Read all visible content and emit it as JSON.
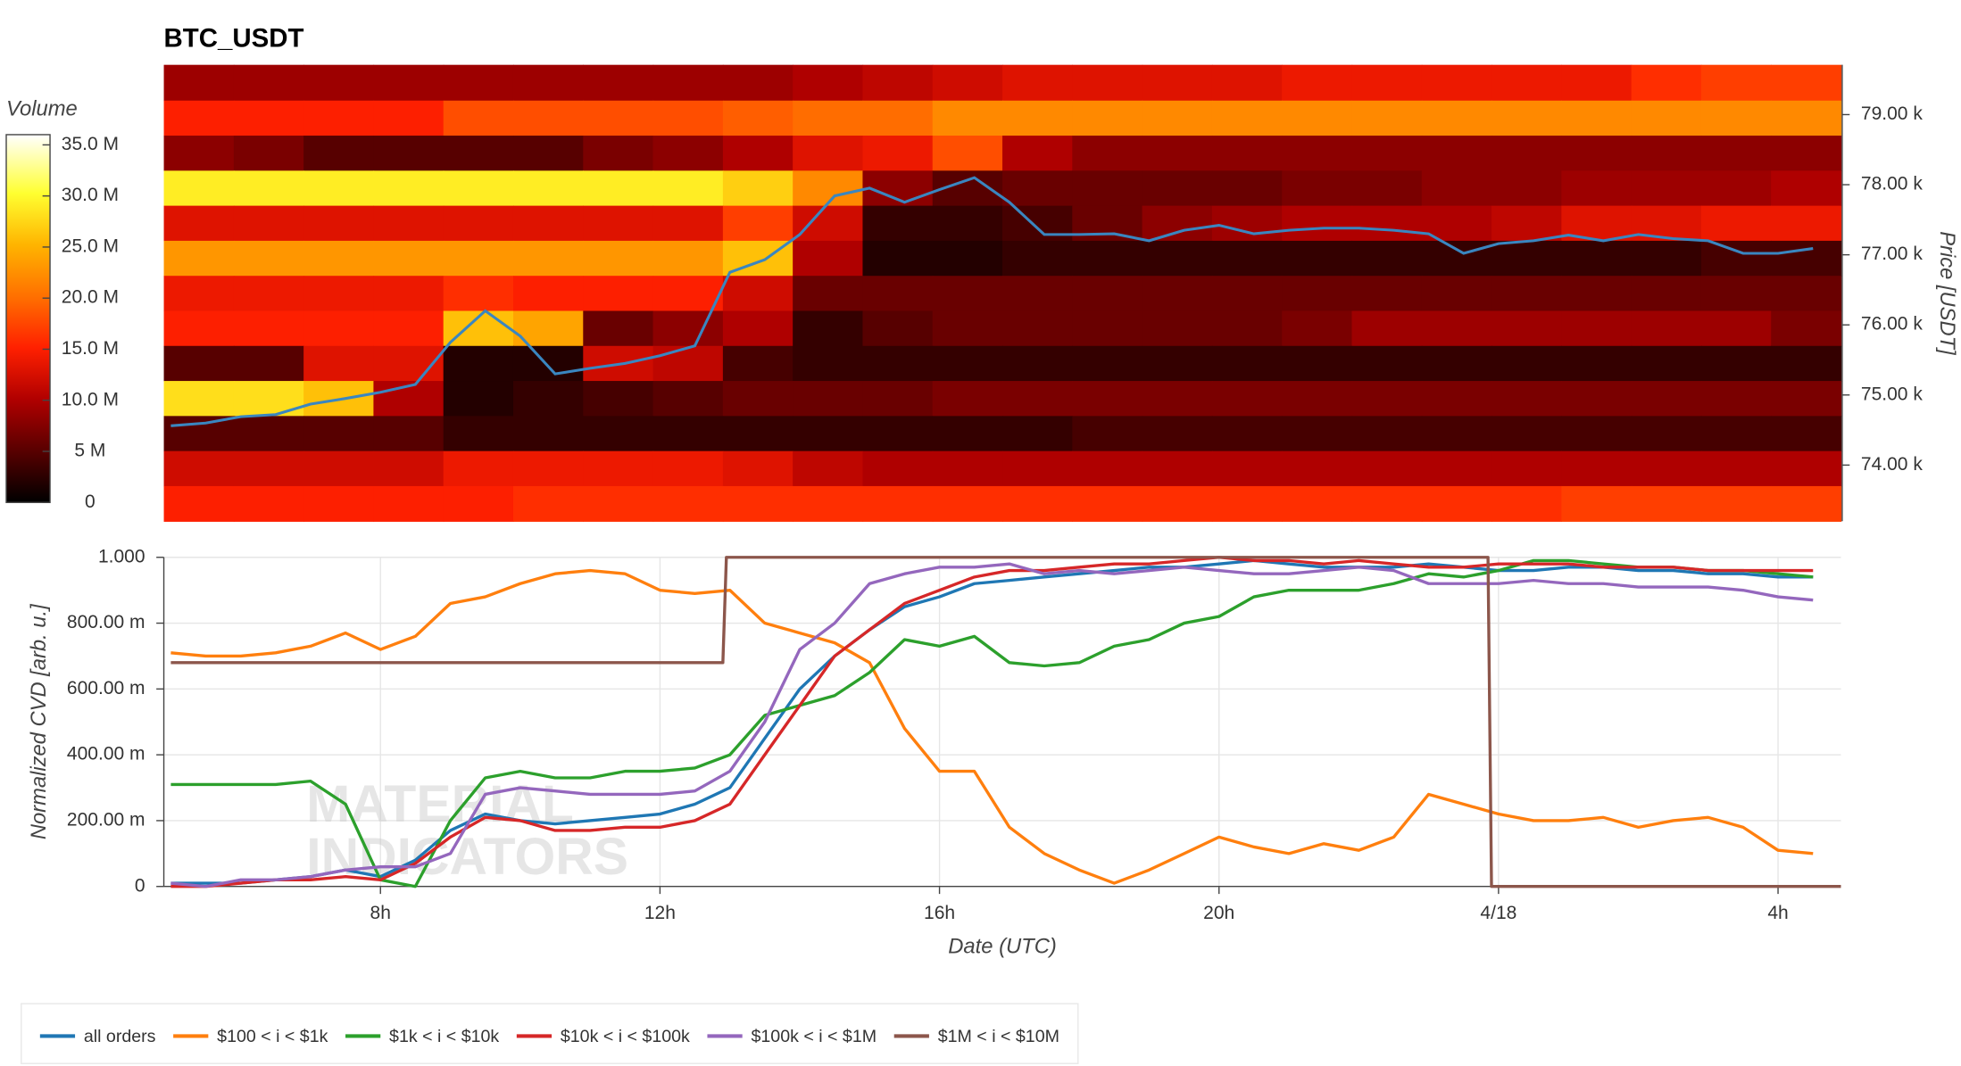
{
  "chart_data": [
    {
      "type": "heatmap",
      "title": "BTC_USDT",
      "xbins": [
        4.9,
        5.9,
        6.9,
        7.9,
        8.9,
        9.9,
        10.9,
        11.9,
        12.9,
        13.9,
        14.9,
        15.9,
        16.9,
        17.9,
        18.9,
        19.9,
        20.9,
        21.9,
        22.9,
        23.9,
        24.9,
        25.9,
        26.9,
        27.9,
        28.9
      ],
      "ybins": [
        79710,
        79200,
        78700,
        78200,
        77700,
        77200,
        76700,
        76200,
        75700,
        75200,
        74700,
        74200,
        73700,
        73200
      ],
      "z": [
        [
          9000000.0,
          9000000.0,
          9000000.0,
          9000000.0,
          9000000.0,
          9000000.0,
          9000000.0,
          9000000.0,
          9000000.0,
          10000000.0,
          11000000.0,
          12000000.0,
          13000000.0,
          13000000.0,
          13000000.0,
          13000000.0,
          14000000.0,
          14000000.0,
          14000000.0,
          14000000.0,
          14000000.0,
          16000000.0,
          17000000.0,
          17000000.0
        ],
        [
          15000000.0,
          15000000.0,
          15000000.0,
          15000000.0,
          18000000.0,
          18000000.0,
          18000000.0,
          18000000.0,
          19000000.0,
          20000000.0,
          20000000.0,
          22000000.0,
          22000000.0,
          22000000.0,
          22000000.0,
          22000000.0,
          22000000.0,
          22000000.0,
          22000000.0,
          22000000.0,
          22000000.0,
          22000000.0,
          22000000.0,
          22000000.0
        ],
        [
          8000000.0,
          7000000.0,
          5000000.0,
          5000000.0,
          5000000.0,
          5000000.0,
          7000000.0,
          8000000.0,
          10000000.0,
          13000000.0,
          14000000.0,
          18000000.0,
          10000000.0,
          8000000.0,
          8000000.0,
          8000000.0,
          8000000.0,
          8000000.0,
          8000000.0,
          8000000.0,
          8000000.0,
          8000000.0,
          8000000.0,
          8000000.0
        ],
        [
          29000000.0,
          29000000.0,
          29000000.0,
          29000000.0,
          29000000.0,
          29000000.0,
          29000000.0,
          29000000.0,
          27000000.0,
          22000000.0,
          8000000.0,
          5000000.0,
          6000000.0,
          6000000.0,
          6000000.0,
          6000000.0,
          7000000.0,
          7000000.0,
          8000000.0,
          8000000.0,
          9000000.0,
          9000000.0,
          9000000.0,
          10000000.0
        ],
        [
          13000000.0,
          13000000.0,
          13000000.0,
          13000000.0,
          13000000.0,
          13000000.0,
          13000000.0,
          13000000.0,
          17000000.0,
          12000000.0,
          3000000.0,
          3000000.0,
          4000000.0,
          6000000.0,
          8000000.0,
          9000000.0,
          10000000.0,
          10000000.0,
          10000000.0,
          11000000.0,
          13000000.0,
          13000000.0,
          14000000.0,
          14000000.0
        ],
        [
          23000000.0,
          23000000.0,
          23000000.0,
          23000000.0,
          23000000.0,
          23000000.0,
          23000000.0,
          23000000.0,
          26000000.0,
          10000000.0,
          2000000.0,
          2000000.0,
          3000000.0,
          3000000.0,
          3000000.0,
          3000000.0,
          3000000.0,
          3000000.0,
          3000000.0,
          3000000.0,
          3000000.0,
          3000000.0,
          4000000.0,
          4000000.0
        ],
        [
          14000000.0,
          14000000.0,
          14000000.0,
          14000000.0,
          16000000.0,
          15000000.0,
          15000000.0,
          15000000.0,
          12000000.0,
          6000000.0,
          6000000.0,
          6000000.0,
          6000000.0,
          6000000.0,
          6000000.0,
          6000000.0,
          6000000.0,
          6000000.0,
          6000000.0,
          6000000.0,
          6000000.0,
          6000000.0,
          6000000.0,
          6000000.0
        ],
        [
          15000000.0,
          15000000.0,
          15000000.0,
          15000000.0,
          26000000.0,
          24000000.0,
          6000000.0,
          8000000.0,
          10000000.0,
          3000000.0,
          5000000.0,
          6000000.0,
          6000000.0,
          6000000.0,
          6000000.0,
          6000000.0,
          7000000.0,
          9000000.0,
          9000000.0,
          9000000.0,
          9000000.0,
          9000000.0,
          9000000.0,
          7000000.0
        ],
        [
          5000000.0,
          5000000.0,
          13000000.0,
          13000000.0,
          2000000.0,
          2000000.0,
          12000000.0,
          11000000.0,
          4000000.0,
          3000000.0,
          3000000.0,
          3000000.0,
          3000000.0,
          3000000.0,
          3000000.0,
          3000000.0,
          3000000.0,
          3000000.0,
          3000000.0,
          3000000.0,
          3000000.0,
          3000000.0,
          3000000.0,
          3000000.0
        ],
        [
          28000000.0,
          28000000.0,
          26000000.0,
          10000000.0,
          2000000.0,
          3000000.0,
          4000000.0,
          5000000.0,
          6000000.0,
          6000000.0,
          6000000.0,
          7000000.0,
          7000000.0,
          7000000.0,
          7000000.0,
          7000000.0,
          7000000.0,
          7000000.0,
          7000000.0,
          7000000.0,
          7000000.0,
          7000000.0,
          7000000.0,
          7000000.0
        ],
        [
          5000000.0,
          5000000.0,
          5000000.0,
          5000000.0,
          3000000.0,
          3000000.0,
          3000000.0,
          3000000.0,
          3000000.0,
          3000000.0,
          3000000.0,
          3000000.0,
          3000000.0,
          4000000.0,
          4000000.0,
          4000000.0,
          4000000.0,
          4000000.0,
          4000000.0,
          4000000.0,
          4000000.0,
          4000000.0,
          4000000.0,
          4000000.0
        ],
        [
          12000000.0,
          12000000.0,
          12000000.0,
          12000000.0,
          14000000.0,
          14000000.0,
          14000000.0,
          14000000.0,
          13000000.0,
          11000000.0,
          10000000.0,
          10000000.0,
          10000000.0,
          10000000.0,
          10000000.0,
          10000000.0,
          10000000.0,
          10000000.0,
          10000000.0,
          10000000.0,
          10000000.0,
          10000000.0,
          10000000.0,
          10000000.0
        ],
        [
          15000000.0,
          15000000.0,
          15000000.0,
          15000000.0,
          15000000.0,
          16000000.0,
          16000000.0,
          16000000.0,
          16000000.0,
          16000000.0,
          16000000.0,
          16000000.0,
          16000000.0,
          16000000.0,
          16000000.0,
          16000000.0,
          16000000.0,
          16000000.0,
          16000000.0,
          16000000.0,
          17000000.0,
          17000000.0,
          17000000.0,
          17000000.0
        ]
      ],
      "colorscale": [
        [
          0,
          "#000000"
        ],
        [
          0.28,
          "#b00000"
        ],
        [
          0.42,
          "#ff2000"
        ],
        [
          0.56,
          "#ff7000"
        ],
        [
          0.7,
          "#ffb400"
        ],
        [
          0.84,
          "#ffff30"
        ],
        [
          1,
          "#ffffff"
        ]
      ],
      "colorbar_title": "Volume",
      "zlim": [
        0,
        36000000
      ],
      "zticks": [
        0,
        {
          "value": 5000000,
          "label": "5 M"
        },
        {
          "value": 10000000,
          "label": "10.0 M"
        },
        {
          "value": 15000000,
          "label": "15.0 M"
        },
        {
          "value": 20000000,
          "label": "20.0 M"
        },
        {
          "value": 25000000,
          "label": "25.0 M"
        },
        {
          "value": 30000000,
          "label": "30.0 M"
        },
        {
          "value": 35000000,
          "label": "35.0 M"
        }
      ],
      "xlim": [
        4.9,
        28.9
      ],
      "ylim": [
        73200,
        79710
      ],
      "y_label": "Price [USDT]",
      "yticks": [
        {
          "value": 74000,
          "label": "74.00 k"
        },
        {
          "value": 75000,
          "label": "75.00 k"
        },
        {
          "value": 76000,
          "label": "76.00 k"
        },
        {
          "value": 77000,
          "label": "77.00 k"
        },
        {
          "value": 78000,
          "label": "78.00 k"
        },
        {
          "value": 79000,
          "label": "79.00 k"
        }
      ],
      "line": {
        "color": "#3a86c0",
        "x": [
          5,
          5.5,
          6,
          6.5,
          7,
          7.5,
          8,
          8.5,
          9,
          9.5,
          10,
          10.5,
          11,
          11.5,
          12,
          12.5,
          13,
          13.5,
          14,
          14.5,
          15,
          15.5,
          16,
          16.5,
          17,
          17.5,
          18,
          18.5,
          19,
          19.5,
          20,
          20.5,
          21,
          21.5,
          22,
          22.5,
          23,
          23.5,
          24,
          24.5,
          25,
          25.5,
          26,
          26.5,
          27,
          27.5,
          28,
          28.5
        ],
        "values": [
          74560,
          74600,
          74690,
          74720,
          74870,
          74950,
          75040,
          75150,
          75750,
          76200,
          75840,
          75300,
          75380,
          75450,
          75560,
          75700,
          76750,
          76930,
          77290,
          77840,
          77950,
          77750,
          77930,
          78100,
          77750,
          77290,
          77290,
          77300,
          77200,
          77350,
          77420,
          77300,
          77350,
          77380,
          77380,
          77350,
          77300,
          77020,
          77160,
          77200,
          77280,
          77200,
          77290,
          77230,
          77200,
          77020,
          77020,
          77090
        ]
      }
    },
    {
      "type": "line",
      "x_label": "Date (UTC)",
      "y_label": "Normalized CVD [arb. u.]",
      "watermark": [
        "MATERIAL",
        "INDICATORS"
      ],
      "grid": true,
      "xlim": [
        4.9,
        28.9
      ],
      "ylim": [
        0,
        1
      ],
      "xticks": [
        {
          "value": 8,
          "label": "8h"
        },
        {
          "value": 12,
          "label": "12h"
        },
        {
          "value": 16,
          "label": "16h"
        },
        {
          "value": 20,
          "label": "20h"
        },
        {
          "value": 24,
          "label": "4/18"
        },
        {
          "value": 28,
          "label": "4h"
        }
      ],
      "yticks": [
        0,
        {
          "value": 0.2,
          "label": "200.00 m"
        },
        {
          "value": 0.4,
          "label": "400.00 m"
        },
        {
          "value": 0.6,
          "label": "600.00 m"
        },
        {
          "value": 0.8,
          "label": "800.00 m"
        },
        {
          "value": 1,
          "label": "1.000"
        }
      ],
      "x": [
        5,
        5.5,
        6,
        6.5,
        7,
        7.5,
        8,
        8.5,
        9,
        9.5,
        10,
        10.5,
        11,
        11.5,
        12,
        12.5,
        13,
        13.5,
        14,
        14.5,
        15,
        15.5,
        16,
        16.5,
        17,
        17.5,
        18,
        18.5,
        19,
        19.5,
        20,
        20.5,
        21,
        21.5,
        22,
        22.5,
        23,
        23.5,
        24,
        24.5,
        25,
        25.5,
        26,
        26.5,
        27,
        27.5,
        28,
        28.5
      ],
      "series": [
        {
          "name": "all orders",
          "color": "#1f77b4",
          "values": [
            0.01,
            0.01,
            0.01,
            0.02,
            0.03,
            0.05,
            0.03,
            0.08,
            0.17,
            0.22,
            0.2,
            0.19,
            0.2,
            0.21,
            0.22,
            0.25,
            0.3,
            0.45,
            0.6,
            0.7,
            0.78,
            0.85,
            0.88,
            0.92,
            0.93,
            0.94,
            0.95,
            0.96,
            0.97,
            0.97,
            0.98,
            0.99,
            0.98,
            0.97,
            0.97,
            0.97,
            0.98,
            0.97,
            0.96,
            0.96,
            0.97,
            0.97,
            0.96,
            0.96,
            0.95,
            0.95,
            0.94,
            0.94
          ]
        },
        {
          "name": "$100 < i < $1k",
          "color": "#ff7f0e",
          "values": [
            0.71,
            0.7,
            0.7,
            0.71,
            0.73,
            0.77,
            0.72,
            0.76,
            0.86,
            0.88,
            0.92,
            0.95,
            0.96,
            0.95,
            0.9,
            0.89,
            0.9,
            0.8,
            0.77,
            0.74,
            0.68,
            0.48,
            0.35,
            0.35,
            0.18,
            0.1,
            0.05,
            0.01,
            0.05,
            0.1,
            0.15,
            0.12,
            0.1,
            0.13,
            0.11,
            0.15,
            0.28,
            0.25,
            0.22,
            0.2,
            0.2,
            0.21,
            0.18,
            0.2,
            0.21,
            0.18,
            0.11,
            0.1
          ]
        },
        {
          "name": "$1k < i < $10k",
          "color": "#2ca02c",
          "values": [
            0.31,
            0.31,
            0.31,
            0.31,
            0.32,
            0.25,
            0.02,
            0.0,
            0.2,
            0.33,
            0.35,
            0.33,
            0.33,
            0.35,
            0.35,
            0.36,
            0.4,
            0.52,
            0.55,
            0.58,
            0.65,
            0.75,
            0.73,
            0.76,
            0.68,
            0.67,
            0.68,
            0.73,
            0.75,
            0.8,
            0.82,
            0.88,
            0.9,
            0.9,
            0.9,
            0.92,
            0.95,
            0.94,
            0.96,
            0.99,
            0.99,
            0.98,
            0.97,
            0.97,
            0.96,
            0.96,
            0.95,
            0.94
          ]
        },
        {
          "name": "$10k < i < $100k",
          "color": "#d62728",
          "values": [
            0.0,
            0.0,
            0.01,
            0.02,
            0.02,
            0.03,
            0.02,
            0.07,
            0.15,
            0.21,
            0.2,
            0.17,
            0.17,
            0.18,
            0.18,
            0.2,
            0.25,
            0.4,
            0.55,
            0.7,
            0.78,
            0.86,
            0.9,
            0.94,
            0.96,
            0.96,
            0.97,
            0.98,
            0.98,
            0.99,
            1.0,
            0.99,
            0.99,
            0.98,
            0.99,
            0.98,
            0.97,
            0.97,
            0.98,
            0.98,
            0.98,
            0.97,
            0.97,
            0.97,
            0.96,
            0.96,
            0.96,
            0.96
          ]
        },
        {
          "name": "$100k < i < $1M",
          "color": "#9467bd",
          "values": [
            0.01,
            0.0,
            0.02,
            0.02,
            0.03,
            0.05,
            0.06,
            0.06,
            0.1,
            0.28,
            0.3,
            0.29,
            0.28,
            0.28,
            0.28,
            0.29,
            0.35,
            0.5,
            0.72,
            0.8,
            0.92,
            0.95,
            0.97,
            0.97,
            0.98,
            0.95,
            0.96,
            0.95,
            0.96,
            0.97,
            0.96,
            0.95,
            0.95,
            0.96,
            0.97,
            0.96,
            0.92,
            0.92,
            0.92,
            0.93,
            0.92,
            0.92,
            0.91,
            0.91,
            0.91,
            0.9,
            0.88,
            0.87
          ]
        },
        {
          "name": "$1M < i < $10M",
          "color": "#8c564b",
          "x": [
            5,
            12.9,
            12.95,
            23.85,
            23.9,
            28.9
          ],
          "values": [
            0.68,
            0.68,
            1,
            1,
            0,
            0
          ]
        }
      ]
    }
  ]
}
